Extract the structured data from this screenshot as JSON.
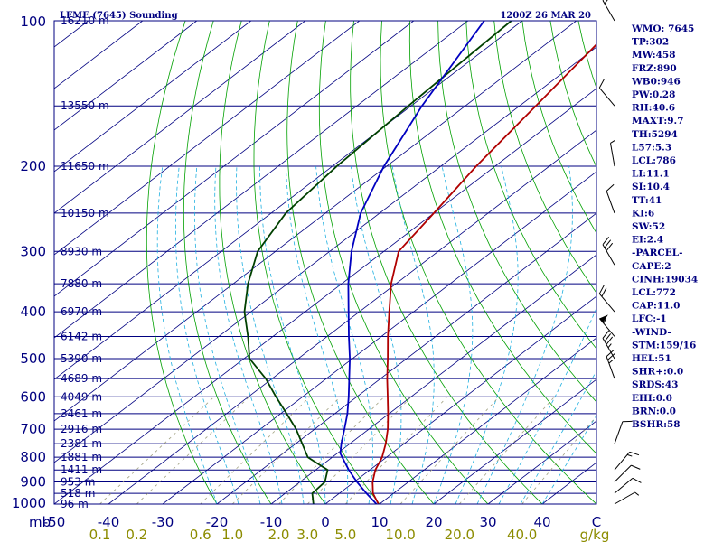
{
  "colors": {
    "frame": "#000080",
    "isobar": "#000080",
    "isotherm": "#000080",
    "dry_adiabat": "#00a000",
    "moist_adiabat": "#20b0e0",
    "mixing_ratio": "#a0a080",
    "temperature": "#b00000",
    "dewpoint": "#004000",
    "parcel": "#0000c0",
    "wind": "#000000",
    "text": "#000080",
    "mixing_label": "#8c8c00"
  },
  "header": {
    "station": "LFME (7645) Sounding",
    "time": "1200Z 26 MAR 20"
  },
  "chart_data": {
    "type": "line",
    "title": "LFME (7645) Sounding",
    "subtitle": "1200Z 26 MAR 20",
    "xlim": [
      -50,
      50
    ],
    "ylim": [
      1000,
      100
    ],
    "y_scale": "log",
    "grid": true,
    "x_ticks": [
      -50,
      -40,
      -30,
      -20,
      -10,
      0,
      10,
      20,
      30,
      40
    ],
    "x_tick_labels": [
      "-50",
      "-40",
      "-30",
      "-20",
      "-10",
      "0",
      "10",
      "20",
      "30",
      "40",
      "C"
    ],
    "x_axis_prefix": "mb",
    "pressure_ticks": [
      100,
      200,
      300,
      400,
      500,
      600,
      700,
      800,
      900,
      1000
    ],
    "pressure_tick_labels": [
      "100",
      "200",
      "300",
      "400",
      "500",
      "600",
      "700",
      "800",
      "900",
      "1000"
    ],
    "height_levels": [
      {
        "p": 100,
        "label": "16210 m"
      },
      {
        "p": 150,
        "label": "13550 m"
      },
      {
        "p": 200,
        "label": "11650 m"
      },
      {
        "p": 250,
        "label": "10150 m"
      },
      {
        "p": 300,
        "label": "8930 m"
      },
      {
        "p": 350,
        "label": "7880 m"
      },
      {
        "p": 400,
        "label": "6970 m"
      },
      {
        "p": 450,
        "label": "6142 m"
      },
      {
        "p": 500,
        "label": "5390 m"
      },
      {
        "p": 550,
        "label": "4689 m"
      },
      {
        "p": 600,
        "label": "4049 m"
      },
      {
        "p": 650,
        "label": "3461 m"
      },
      {
        "p": 700,
        "label": "2916 m"
      },
      {
        "p": 750,
        "label": "2381 m"
      },
      {
        "p": 800,
        "label": "1881 m"
      },
      {
        "p": 850,
        "label": "1411 m"
      },
      {
        "p": 900,
        "label": "953 m"
      },
      {
        "p": 950,
        "label": "518 m"
      },
      {
        "p": 1000,
        "label": "96 m"
      }
    ],
    "mixing_ratio_labels": [
      "0.1",
      "0.2",
      "0.6",
      "1.0",
      "2.0",
      "3.0",
      "5.0",
      "10.0",
      "20.0",
      "40.0",
      "g/kg"
    ],
    "mixing_ratio_lines": [
      0.1,
      0.2,
      0.6,
      1.0,
      2.0,
      3.0,
      5.0,
      10.0,
      20.0,
      40.0
    ],
    "series": [
      {
        "name": "temperature",
        "points": [
          {
            "p": 1016,
            "t": 10.8
          },
          {
            "p": 1000,
            "t": 9.8
          },
          {
            "p": 950,
            "t": 6.2
          },
          {
            "p": 900,
            "t": 3.4
          },
          {
            "p": 850,
            "t": 1.0
          },
          {
            "p": 800,
            "t": -0.8
          },
          {
            "p": 750,
            "t": -3.4
          },
          {
            "p": 700,
            "t": -6.5
          },
          {
            "p": 650,
            "t": -10.2
          },
          {
            "p": 600,
            "t": -14.3
          },
          {
            "p": 550,
            "t": -18.8
          },
          {
            "p": 500,
            "t": -23.5
          },
          {
            "p": 450,
            "t": -28.8
          },
          {
            "p": 400,
            "t": -34.5
          },
          {
            "p": 350,
            "t": -40.9
          },
          {
            "p": 300,
            "t": -47.3
          },
          {
            "p": 250,
            "t": -50.0
          },
          {
            "p": 200,
            "t": -53.5
          },
          {
            "p": 150,
            "t": -57.0
          },
          {
            "p": 100,
            "t": -62.0
          }
        ]
      },
      {
        "name": "dewpoint",
        "points": [
          {
            "p": 1016,
            "t": 0.2
          },
          {
            "p": 1000,
            "t": -2.2
          },
          {
            "p": 950,
            "t": -5.0
          },
          {
            "p": 900,
            "t": -5.4
          },
          {
            "p": 850,
            "t": -7.8
          },
          {
            "p": 800,
            "t": -14.5
          },
          {
            "p": 750,
            "t": -18.8
          },
          {
            "p": 700,
            "t": -23.4
          },
          {
            "p": 650,
            "t": -28.9
          },
          {
            "p": 600,
            "t": -34.9
          },
          {
            "p": 550,
            "t": -41.2
          },
          {
            "p": 500,
            "t": -49.0
          },
          {
            "p": 450,
            "t": -54.6
          },
          {
            "p": 400,
            "t": -61.2
          },
          {
            "p": 350,
            "t": -67.3
          },
          {
            "p": 300,
            "t": -73.3
          },
          {
            "p": 250,
            "t": -77.3
          },
          {
            "p": 200,
            "t": -79.2
          },
          {
            "p": 150,
            "t": -80.5
          },
          {
            "p": 100,
            "t": -82.0
          }
        ]
      },
      {
        "name": "parcel",
        "points": [
          {
            "p": 1016,
            "t": 10.8
          },
          {
            "p": 950,
            "t": 5.0
          },
          {
            "p": 900,
            "t": 0.5
          },
          {
            "p": 850,
            "t": -3.9
          },
          {
            "p": 786,
            "t": -9.4
          },
          {
            "p": 750,
            "t": -11.6
          },
          {
            "p": 700,
            "t": -14.5
          },
          {
            "p": 650,
            "t": -17.7
          },
          {
            "p": 600,
            "t": -21.5
          },
          {
            "p": 550,
            "t": -25.8
          },
          {
            "p": 500,
            "t": -30.5
          },
          {
            "p": 450,
            "t": -36.0
          },
          {
            "p": 400,
            "t": -42.0
          },
          {
            "p": 350,
            "t": -48.8
          },
          {
            "p": 300,
            "t": -56.0
          },
          {
            "p": 250,
            "t": -63.5
          },
          {
            "p": 200,
            "t": -70.5
          },
          {
            "p": 150,
            "t": -78.0
          },
          {
            "p": 100,
            "t": -87.0
          }
        ]
      }
    ],
    "wind_barbs": [
      {
        "p": 1000,
        "dir": 60,
        "kt": 5
      },
      {
        "p": 950,
        "dir": 50,
        "kt": 10
      },
      {
        "p": 900,
        "dir": 45,
        "kt": 10
      },
      {
        "p": 850,
        "dir": 40,
        "kt": 15
      },
      {
        "p": 750,
        "dir": 20,
        "kt": 10
      },
      {
        "p": 550,
        "dir": 340,
        "kt": 25
      },
      {
        "p": 500,
        "dir": 330,
        "kt": 35
      },
      {
        "p": 450,
        "dir": 320,
        "kt": 55
      },
      {
        "p": 400,
        "dir": 320,
        "kt": 20
      },
      {
        "p": 320,
        "dir": 330,
        "kt": 30
      },
      {
        "p": 250,
        "dir": 340,
        "kt": 10
      },
      {
        "p": 200,
        "dir": 350,
        "kt": 5
      },
      {
        "p": 150,
        "dir": 320,
        "kt": 10
      },
      {
        "p": 100,
        "dir": 330,
        "kt": 15
      }
    ]
  },
  "indices": [
    "WMO: 7645",
    "TP:302",
    "MW:458",
    "FRZ:890",
    "WB0:946",
    "PW:0.28",
    "RH:40.6",
    "MAXT:9.7",
    "TH:5294",
    "L57:5.3",
    "LCL:786",
    "LI:11.1",
    "SI:10.4",
    "TT:41",
    "KI:6",
    "SW:52",
    "EI:2.4",
    "-PARCEL-",
    "CAPE:2",
    "CINH:19034",
    "LCL:772",
    "CAP:11.0",
    "LFC:-1",
    "-WIND-",
    "STM:159/16",
    "HEL:51",
    "SHR+:0.0",
    "SRDS:43",
    "EHI:0.0",
    "BRN:0.0",
    "BSHR:58"
  ]
}
